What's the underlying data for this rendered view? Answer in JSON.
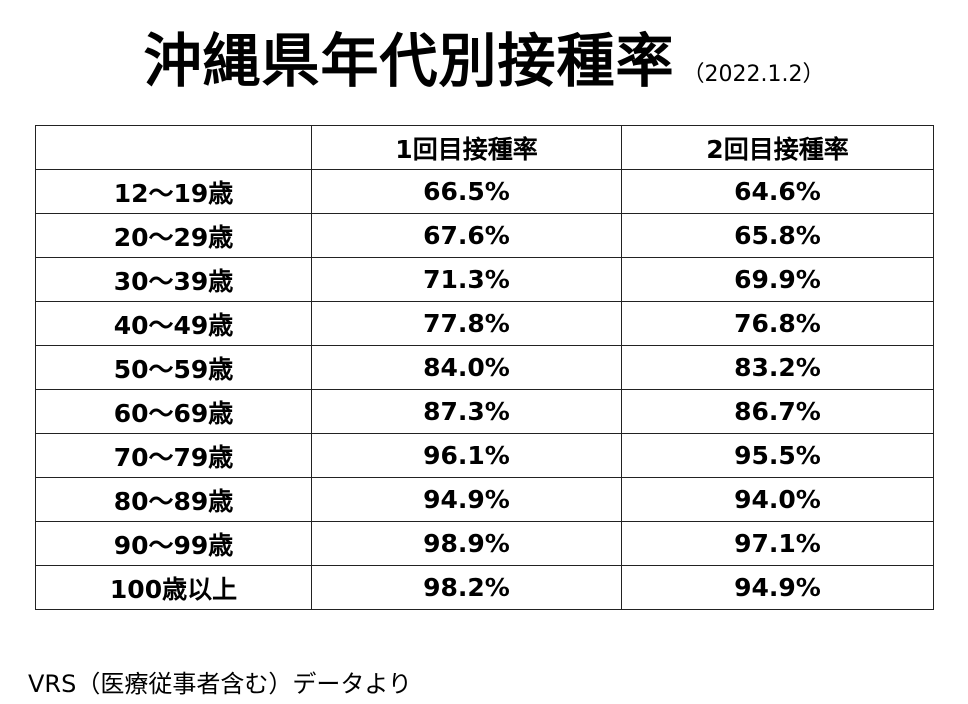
{
  "title": {
    "main": "沖縄県年代別接種率",
    "date": "（2022.1.2）"
  },
  "table": {
    "headers": [
      "",
      "1回目接種率",
      "2回目接種率"
    ],
    "rows": [
      {
        "age": "12～19歳",
        "dose1": "66.5%",
        "dose2": "64.6%"
      },
      {
        "age": "20～29歳",
        "dose1": "67.6%",
        "dose2": "65.8%"
      },
      {
        "age": "30～39歳",
        "dose1": "71.3%",
        "dose2": "69.9%"
      },
      {
        "age": "40～49歳",
        "dose1": "77.8%",
        "dose2": "76.8%"
      },
      {
        "age": "50～59歳",
        "dose1": "84.0%",
        "dose2": "83.2%"
      },
      {
        "age": "60～69歳",
        "dose1": "87.3%",
        "dose2": "86.7%"
      },
      {
        "age": "70～79歳",
        "dose1": "96.1%",
        "dose2": "95.5%"
      },
      {
        "age": "80～89歳",
        "dose1": "94.9%",
        "dose2": "94.0%"
      },
      {
        "age": "90～99歳",
        "dose1": "98.9%",
        "dose2": "97.1%"
      },
      {
        "age": "100歳以上",
        "dose1": "98.2%",
        "dose2": "94.9%"
      }
    ]
  },
  "footnote": "VRS（医療従事者含む）データより"
}
